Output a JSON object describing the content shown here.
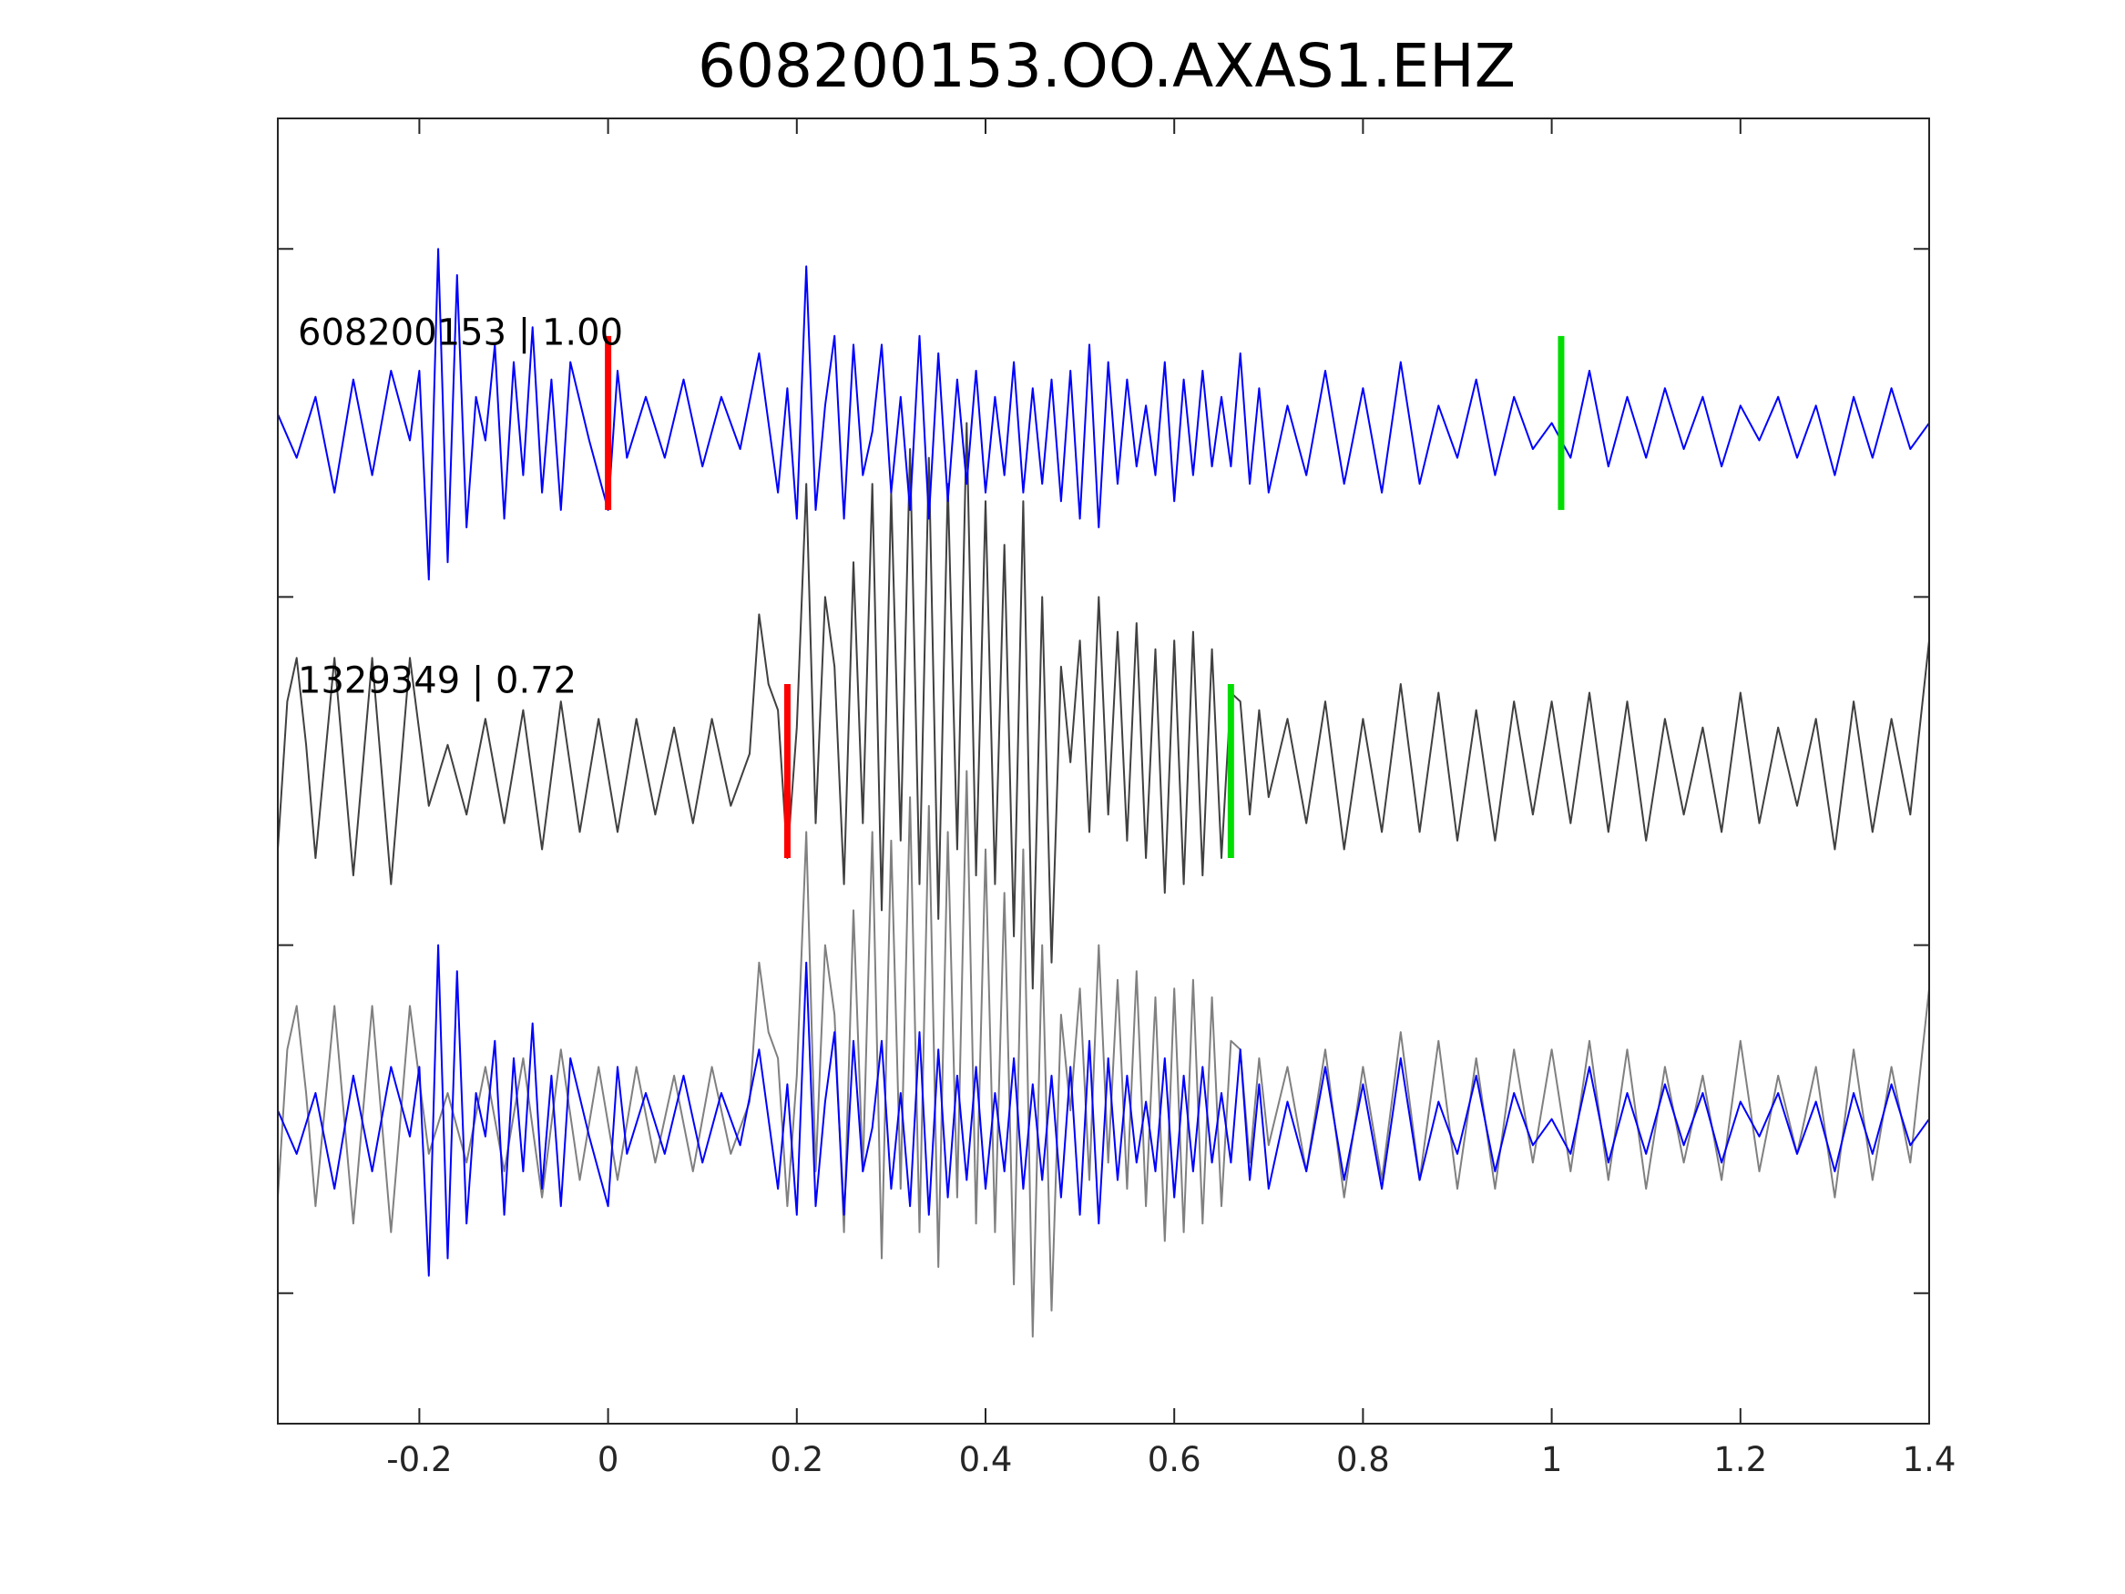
{
  "chart_data": {
    "type": "line",
    "title": "608200153.OO.AXAS1.EHZ",
    "xlabel": "",
    "ylabel": "",
    "xlim": [
      -0.35,
      1.4
    ],
    "x_ticks": [
      -0.2,
      0,
      0.2,
      0.4,
      0.6,
      0.8,
      1,
      1.2,
      1.4
    ],
    "x_tick_labels": [
      "-0.2",
      "0",
      "0.2",
      "0.4",
      "0.6",
      "0.8",
      "1",
      "1.2",
      "1.4"
    ],
    "ylim": [
      -7.5,
      7.5
    ],
    "y_ticks": [
      -6,
      -2,
      2,
      6
    ],
    "y_tick_labels_shown": false,
    "grid": false,
    "legend": "none",
    "colors": {
      "template": "#0000ff",
      "detection": "#404040",
      "overlay_detection": "#808080",
      "pick_p": "#ff0000",
      "pick_s": "#00dd00"
    },
    "traces": [
      {
        "id": "template",
        "label": "608200153 | 1.00",
        "baseline": 4,
        "color": "#0000ff",
        "pick_p": 0.0,
        "pick_s": 1.01,
        "x": [
          -0.35,
          -0.33,
          -0.31,
          -0.29,
          -0.27,
          -0.25,
          -0.23,
          -0.21,
          -0.2,
          -0.19,
          -0.18,
          -0.17,
          -0.16,
          -0.15,
          -0.14,
          -0.13,
          -0.12,
          -0.11,
          -0.1,
          -0.09,
          -0.08,
          -0.07,
          -0.06,
          -0.05,
          -0.04,
          -0.02,
          0.0,
          0.01,
          0.02,
          0.04,
          0.06,
          0.08,
          0.1,
          0.12,
          0.14,
          0.16,
          0.18,
          0.19,
          0.2,
          0.21,
          0.22,
          0.23,
          0.24,
          0.25,
          0.26,
          0.27,
          0.28,
          0.29,
          0.3,
          0.31,
          0.32,
          0.33,
          0.34,
          0.35,
          0.36,
          0.37,
          0.38,
          0.39,
          0.4,
          0.41,
          0.42,
          0.43,
          0.44,
          0.45,
          0.46,
          0.47,
          0.48,
          0.49,
          0.5,
          0.51,
          0.52,
          0.53,
          0.54,
          0.55,
          0.56,
          0.57,
          0.58,
          0.59,
          0.6,
          0.61,
          0.62,
          0.63,
          0.64,
          0.65,
          0.66,
          0.67,
          0.68,
          0.69,
          0.7,
          0.72,
          0.74,
          0.76,
          0.78,
          0.8,
          0.82,
          0.84,
          0.86,
          0.88,
          0.9,
          0.92,
          0.94,
          0.96,
          0.98,
          1.0,
          1.02,
          1.04,
          1.06,
          1.08,
          1.1,
          1.12,
          1.14,
          1.16,
          1.18,
          1.2,
          1.22,
          1.24,
          1.26,
          1.28,
          1.3,
          1.32,
          1.34,
          1.36,
          1.38,
          1.4
        ],
        "y": [
          4.1,
          3.6,
          4.3,
          3.2,
          4.5,
          3.4,
          4.6,
          3.8,
          4.6,
          2.2,
          6.0,
          2.4,
          5.7,
          2.8,
          4.3,
          3.8,
          4.9,
          2.9,
          4.7,
          3.4,
          5.1,
          3.2,
          4.5,
          3.0,
          4.7,
          3.8,
          3.0,
          4.6,
          3.6,
          4.3,
          3.6,
          4.5,
          3.5,
          4.3,
          3.7,
          4.8,
          3.2,
          4.4,
          2.9,
          5.8,
          3.0,
          4.2,
          5.0,
          2.9,
          4.9,
          3.4,
          3.9,
          4.9,
          3.2,
          4.3,
          3.0,
          5.0,
          2.9,
          4.8,
          3.1,
          4.5,
          3.3,
          4.6,
          3.2,
          4.3,
          3.4,
          4.7,
          3.2,
          4.4,
          3.3,
          4.5,
          3.1,
          4.6,
          2.9,
          4.9,
          2.8,
          4.7,
          3.3,
          4.5,
          3.5,
          4.2,
          3.4,
          4.7,
          3.1,
          4.5,
          3.4,
          4.6,
          3.5,
          4.3,
          3.5,
          4.8,
          3.3,
          4.4,
          3.2,
          4.2,
          3.4,
          4.6,
          3.3,
          4.4,
          3.2,
          4.7,
          3.3,
          4.2,
          3.6,
          4.5,
          3.4,
          4.3,
          3.7,
          4.0,
          3.6,
          4.6,
          3.5,
          4.3,
          3.6,
          4.4,
          3.7,
          4.3,
          3.5,
          4.2,
          3.8,
          4.3,
          3.6,
          4.2,
          3.4,
          4.3,
          3.6,
          4.4,
          3.7,
          4.0
        ]
      },
      {
        "id": "detection",
        "label": "1329349 | 0.72",
        "baseline": 0,
        "color": "#404040",
        "pick_p": 0.19,
        "pick_s": 0.66,
        "x": [
          -0.35,
          -0.34,
          -0.33,
          -0.32,
          -0.31,
          -0.29,
          -0.27,
          -0.25,
          -0.23,
          -0.21,
          -0.19,
          -0.17,
          -0.15,
          -0.13,
          -0.11,
          -0.09,
          -0.07,
          -0.05,
          -0.03,
          -0.01,
          0.01,
          0.03,
          0.05,
          0.07,
          0.09,
          0.11,
          0.13,
          0.15,
          0.16,
          0.17,
          0.18,
          0.19,
          0.2,
          0.21,
          0.22,
          0.23,
          0.24,
          0.25,
          0.26,
          0.27,
          0.28,
          0.29,
          0.3,
          0.31,
          0.32,
          0.33,
          0.34,
          0.35,
          0.36,
          0.37,
          0.38,
          0.39,
          0.4,
          0.41,
          0.42,
          0.43,
          0.44,
          0.45,
          0.46,
          0.47,
          0.48,
          0.49,
          0.5,
          0.51,
          0.52,
          0.53,
          0.54,
          0.55,
          0.56,
          0.57,
          0.58,
          0.59,
          0.6,
          0.61,
          0.62,
          0.63,
          0.64,
          0.65,
          0.66,
          0.67,
          0.68,
          0.69,
          0.7,
          0.72,
          0.74,
          0.76,
          0.78,
          0.8,
          0.82,
          0.84,
          0.86,
          0.88,
          0.9,
          0.92,
          0.94,
          0.96,
          0.98,
          1.0,
          1.02,
          1.04,
          1.06,
          1.08,
          1.1,
          1.12,
          1.14,
          1.16,
          1.18,
          1.2,
          1.22,
          1.24,
          1.26,
          1.28,
          1.3,
          1.32,
          1.34,
          1.36,
          1.38,
          1.4
        ],
        "y": [
          -0.9,
          0.8,
          1.3,
          0.3,
          -1.0,
          1.3,
          -1.2,
          1.3,
          -1.3,
          1.3,
          -0.4,
          0.3,
          -0.5,
          0.6,
          -0.6,
          0.7,
          -0.9,
          0.8,
          -0.7,
          0.6,
          -0.7,
          0.6,
          -0.5,
          0.5,
          -0.6,
          0.6,
          -0.4,
          0.2,
          1.8,
          1.0,
          0.7,
          -1.0,
          0.5,
          3.3,
          -0.6,
          2.0,
          1.2,
          -1.3,
          2.4,
          -0.6,
          3.3,
          -1.6,
          3.2,
          -0.8,
          3.7,
          -1.3,
          3.6,
          -1.7,
          3.3,
          -0.9,
          4.0,
          -1.2,
          3.1,
          -1.3,
          2.6,
          -1.9,
          3.1,
          -2.5,
          2.0,
          -2.2,
          1.2,
          0.1,
          1.5,
          -0.7,
          2.0,
          -0.5,
          1.6,
          -0.8,
          1.7,
          -1.0,
          1.4,
          -1.4,
          1.5,
          -1.3,
          1.6,
          -1.2,
          1.4,
          -1.0,
          0.9,
          0.8,
          -0.5,
          0.7,
          -0.3,
          0.6,
          -0.6,
          0.8,
          -0.9,
          0.6,
          -0.7,
          1.0,
          -0.7,
          0.9,
          -0.8,
          0.7,
          -0.8,
          0.8,
          -0.5,
          0.8,
          -0.6,
          0.9,
          -0.7,
          0.8,
          -0.8,
          0.6,
          -0.5,
          0.5,
          -0.7,
          0.9,
          -0.6,
          0.5,
          -0.4,
          0.6,
          -0.9,
          0.8,
          -0.7,
          0.6,
          -0.5,
          1.5
        ]
      },
      {
        "id": "overlay-template",
        "label": "",
        "baseline": -4,
        "color": "#0000ff",
        "copy_of": "template"
      },
      {
        "id": "overlay-detection",
        "label": "",
        "baseline": -4,
        "color": "#808080",
        "copy_of": "detection"
      }
    ]
  }
}
